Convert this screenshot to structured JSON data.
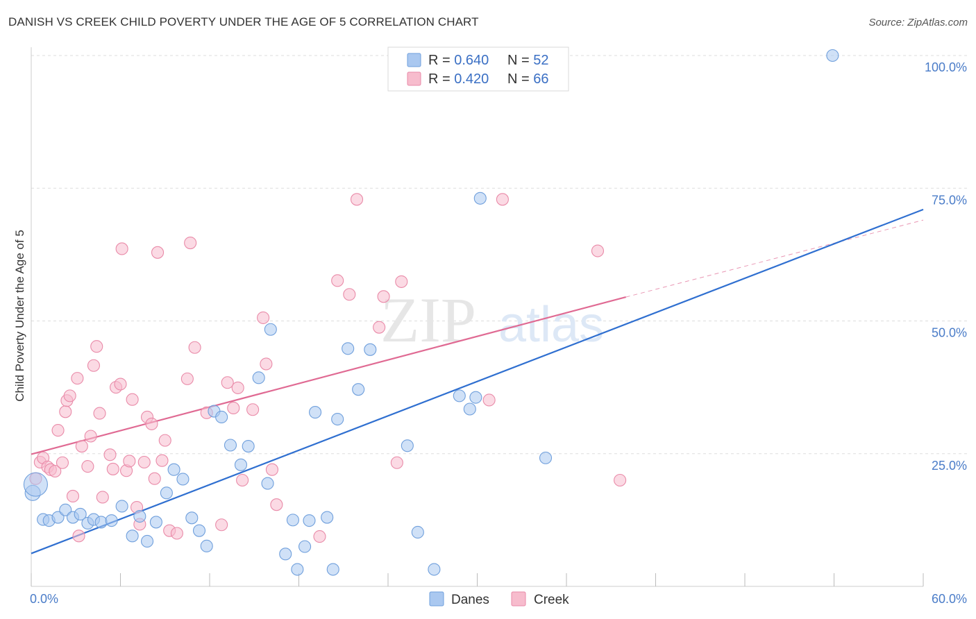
{
  "title": "DANISH VS CREEK CHILD POVERTY UNDER THE AGE OF 5 CORRELATION CHART",
  "source": "Source: ZipAtlas.com",
  "watermark": {
    "zip": "ZIP",
    "atlas": "atlas"
  },
  "colors": {
    "danes_fill": "#aac8f0",
    "danes_stroke": "#6f9fdc",
    "danes_line": "#2f6fd0",
    "creek_fill": "#f7bccd",
    "creek_stroke": "#e98aa8",
    "creek_line": "#e06a93",
    "tick_label": "#4a7cc8",
    "grid": "#dddddd"
  },
  "legend": {
    "rows": [
      {
        "r_label": "R = ",
        "r_value": "0.640",
        "n_label": "N = ",
        "n_value": "52"
      },
      {
        "r_label": "R = ",
        "r_value": "0.420",
        "n_label": "N = ",
        "n_value": "66"
      }
    ]
  },
  "bottom_legend": [
    "Danes",
    "Creek"
  ],
  "chart_data": {
    "type": "scatter",
    "title": "DANISH VS CREEK CHILD POVERTY UNDER THE AGE OF 5 CORRELATION CHART",
    "xlabel": "",
    "ylabel": "Child Poverty Under the Age of 5",
    "xlim": [
      0,
      60
    ],
    "ylim": [
      0,
      100
    ],
    "x_tick_labels": [
      "0.0%",
      "60.0%"
    ],
    "y_ticks": [
      25,
      50,
      75,
      100
    ],
    "y_tick_labels": [
      "25.0%",
      "50.0%",
      "75.0%",
      "100.0%"
    ],
    "grid": true,
    "legend_position": "top-center",
    "series": [
      {
        "name": "Danes",
        "R": 0.64,
        "N": 52,
        "trend": {
          "x": [
            0,
            60
          ],
          "y": [
            6.2,
            71.0
          ]
        },
        "points": [
          [
            0.1,
            17.6
          ],
          [
            0.8,
            12.6
          ],
          [
            1.2,
            12.4
          ],
          [
            1.8,
            13.0
          ],
          [
            2.3,
            14.4
          ],
          [
            2.8,
            13.0
          ],
          [
            3.3,
            13.6
          ],
          [
            3.8,
            11.9
          ],
          [
            4.2,
            12.6
          ],
          [
            4.7,
            12.1
          ],
          [
            5.4,
            12.4
          ],
          [
            6.1,
            15.1
          ],
          [
            6.8,
            9.5
          ],
          [
            7.3,
            13.2
          ],
          [
            7.8,
            8.5
          ],
          [
            8.4,
            12.1
          ],
          [
            9.1,
            17.6
          ],
          [
            9.6,
            22.0
          ],
          [
            10.2,
            20.2
          ],
          [
            10.8,
            12.9
          ],
          [
            11.3,
            10.5
          ],
          [
            11.8,
            7.6
          ],
          [
            12.3,
            33.0
          ],
          [
            12.8,
            31.9
          ],
          [
            13.4,
            26.6
          ],
          [
            14.1,
            22.9
          ],
          [
            14.6,
            26.4
          ],
          [
            15.3,
            39.3
          ],
          [
            15.9,
            19.4
          ],
          [
            16.1,
            48.4
          ],
          [
            17.1,
            6.1
          ],
          [
            17.6,
            12.5
          ],
          [
            17.9,
            3.2
          ],
          [
            18.4,
            7.5
          ],
          [
            18.7,
            12.4
          ],
          [
            19.1,
            32.8
          ],
          [
            19.9,
            13.0
          ],
          [
            20.3,
            3.2
          ],
          [
            20.6,
            31.5
          ],
          [
            21.3,
            44.8
          ],
          [
            22.0,
            37.1
          ],
          [
            22.8,
            44.6
          ],
          [
            25.3,
            26.5
          ],
          [
            26.0,
            10.2
          ],
          [
            27.1,
            3.2
          ],
          [
            28.8,
            35.9
          ],
          [
            29.5,
            33.4
          ],
          [
            29.9,
            35.6
          ],
          [
            30.2,
            73.1
          ],
          [
            34.6,
            24.2
          ],
          [
            53.9,
            100.0
          ],
          [
            0.3,
            19.2
          ]
        ]
      },
      {
        "name": "Creek",
        "R": 0.42,
        "N": 66,
        "trend": {
          "x": [
            0,
            40
          ],
          "y": [
            24.9,
            54.5
          ]
        },
        "trend_dashed": {
          "x": [
            40,
            60
          ],
          "y": [
            54.5,
            69.0
          ]
        },
        "points": [
          [
            0.3,
            20.3
          ],
          [
            0.6,
            23.4
          ],
          [
            0.8,
            24.2
          ],
          [
            1.1,
            22.5
          ],
          [
            1.3,
            22.0
          ],
          [
            1.6,
            21.7
          ],
          [
            1.8,
            29.4
          ],
          [
            2.1,
            23.3
          ],
          [
            2.3,
            32.9
          ],
          [
            2.4,
            35.0
          ],
          [
            2.6,
            35.9
          ],
          [
            2.8,
            17.0
          ],
          [
            3.1,
            39.2
          ],
          [
            3.2,
            9.5
          ],
          [
            3.4,
            26.4
          ],
          [
            3.8,
            22.6
          ],
          [
            4.0,
            28.3
          ],
          [
            4.2,
            41.6
          ],
          [
            4.4,
            45.2
          ],
          [
            4.6,
            32.6
          ],
          [
            4.8,
            16.8
          ],
          [
            5.3,
            24.8
          ],
          [
            5.5,
            22.1
          ],
          [
            5.7,
            37.5
          ],
          [
            6.0,
            38.1
          ],
          [
            6.1,
            63.6
          ],
          [
            6.4,
            21.8
          ],
          [
            6.6,
            23.6
          ],
          [
            6.8,
            35.2
          ],
          [
            7.1,
            14.9
          ],
          [
            7.3,
            11.7
          ],
          [
            7.6,
            23.4
          ],
          [
            7.8,
            31.9
          ],
          [
            8.1,
            30.6
          ],
          [
            8.3,
            20.3
          ],
          [
            8.5,
            62.9
          ],
          [
            8.8,
            23.7
          ],
          [
            9.0,
            27.5
          ],
          [
            9.3,
            10.5
          ],
          [
            9.8,
            10.0
          ],
          [
            10.5,
            39.1
          ],
          [
            10.7,
            64.7
          ],
          [
            11.0,
            45.0
          ],
          [
            11.8,
            32.7
          ],
          [
            12.8,
            11.6
          ],
          [
            13.2,
            38.4
          ],
          [
            13.6,
            33.6
          ],
          [
            13.9,
            37.4
          ],
          [
            14.2,
            20.0
          ],
          [
            14.9,
            33.3
          ],
          [
            15.6,
            50.6
          ],
          [
            15.8,
            41.9
          ],
          [
            16.2,
            22.0
          ],
          [
            16.5,
            15.4
          ],
          [
            19.4,
            9.4
          ],
          [
            20.6,
            57.6
          ],
          [
            21.4,
            55.0
          ],
          [
            21.9,
            72.9
          ],
          [
            23.4,
            48.8
          ],
          [
            23.7,
            54.6
          ],
          [
            24.6,
            23.3
          ],
          [
            24.9,
            57.4
          ],
          [
            30.8,
            35.1
          ],
          [
            31.7,
            72.9
          ],
          [
            38.1,
            63.2
          ],
          [
            39.6,
            20.0
          ]
        ]
      }
    ]
  }
}
